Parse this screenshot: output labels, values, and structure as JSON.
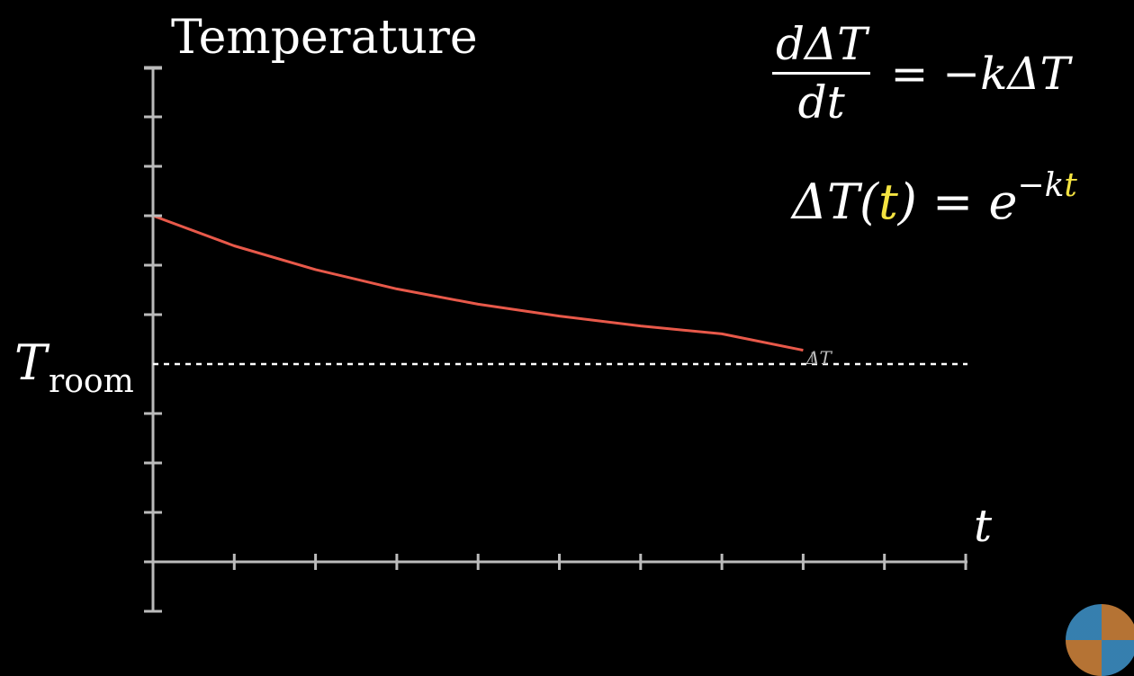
{
  "chart_data": {
    "type": "line",
    "ylabel": "Temperature",
    "xlabel": "t",
    "reference_line": {
      "label_main": "T",
      "label_sub": "room",
      "style": "dotted"
    },
    "equations": {
      "eq1_num": "dΔT",
      "eq1_den": "dt",
      "eq1_rhs": "= −kΔT",
      "eq2_lhs": "ΔT(",
      "eq2_t": "t",
      "eq2_mid": ") = e",
      "eq2_sup_k": "−k",
      "eq2_sup_t": "t"
    },
    "delta_label": "ΔT",
    "series": [
      {
        "color": "#e8594a",
        "x": [
          0,
          1,
          2,
          3,
          4,
          5,
          6,
          7,
          8
        ],
        "y": [
          3.0,
          2.39,
          1.91,
          1.52,
          1.21,
          0.97,
          0.77,
          0.61,
          0.28
        ]
      }
    ],
    "x_ticks": 10,
    "y_ticks_above": 6,
    "y_ticks_below": 4,
    "colors": {
      "axis": "#bbbbbb",
      "curve": "#e8594a",
      "highlight": "#f4e341"
    }
  }
}
